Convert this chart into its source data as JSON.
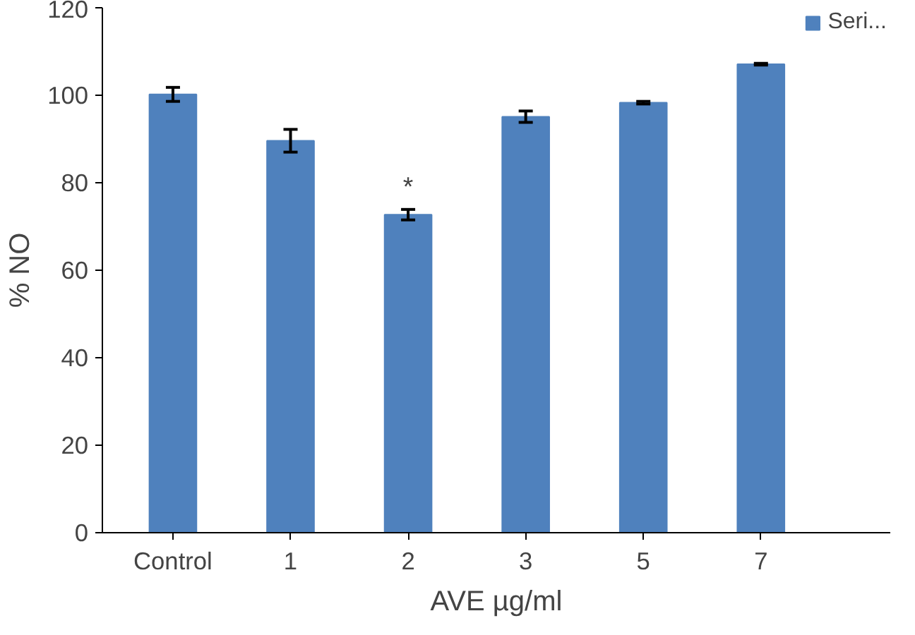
{
  "chart_data": {
    "type": "bar",
    "xlabel": "AVE µg/ml",
    "ylabel": "% NO",
    "categories": [
      "Control",
      "1",
      "2",
      "3",
      "5",
      "7"
    ],
    "series": [
      {
        "name": "Seri...",
        "color": "#4f81bd",
        "values": [
          100.2,
          89.6,
          72.7,
          95.1,
          98.3,
          107.1
        ],
        "errors": [
          1.6,
          2.6,
          1.2,
          1.3,
          0.3,
          0.2
        ]
      }
    ],
    "annotations": [
      {
        "text": "*",
        "x": "2",
        "y": 73.9
      }
    ],
    "ylim": [
      0,
      120
    ],
    "yticks": [
      0,
      20,
      40,
      60,
      80,
      100,
      120
    ],
    "grid": false,
    "legend": "top right"
  }
}
